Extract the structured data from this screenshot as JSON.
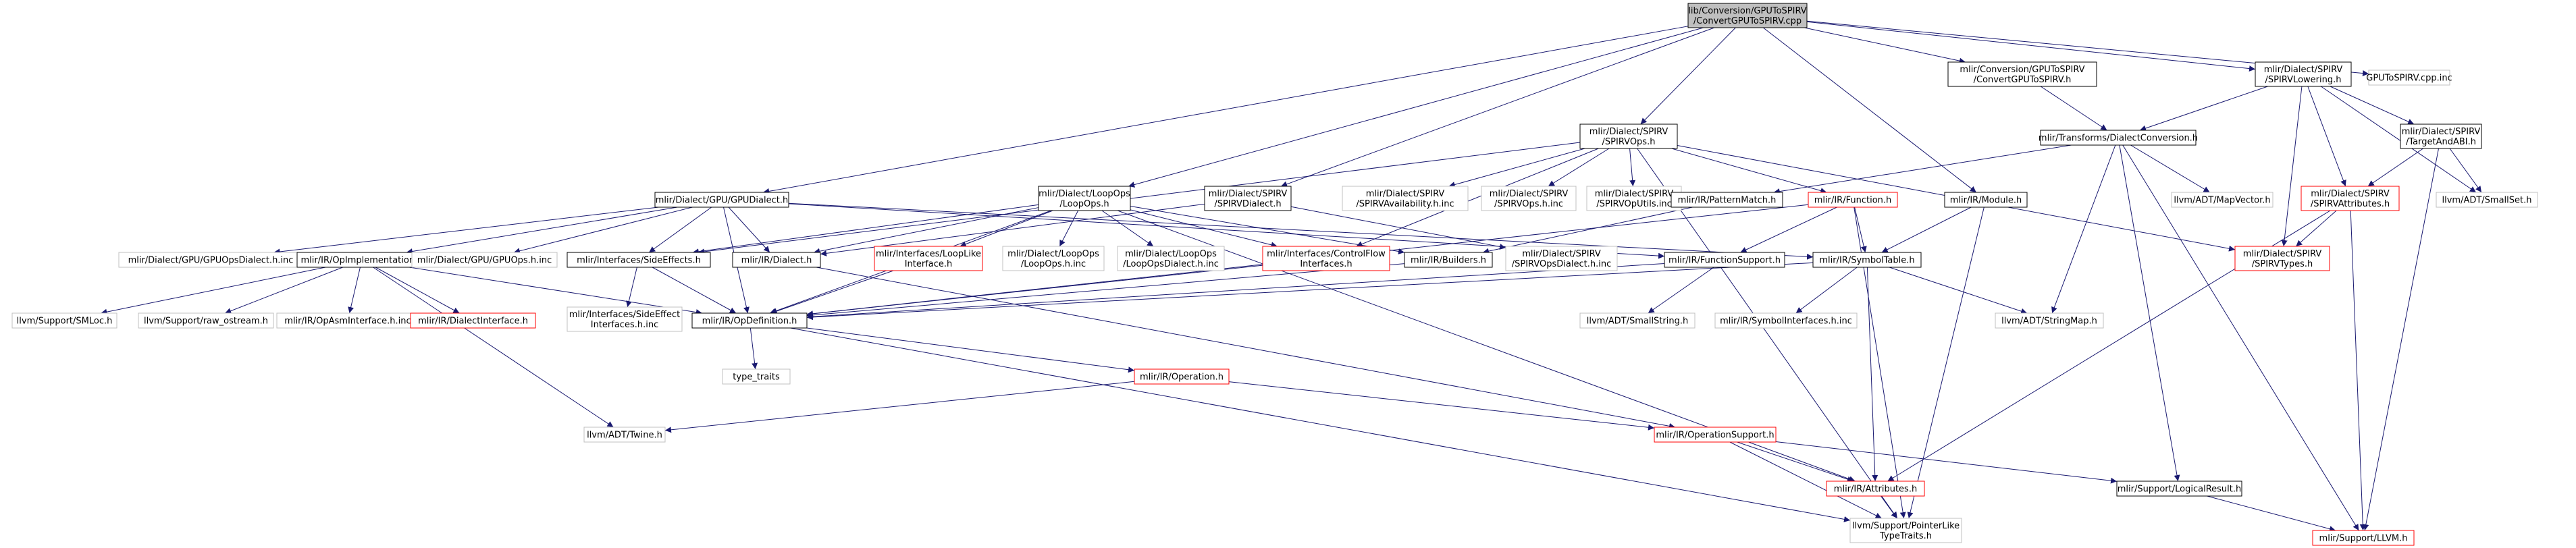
{
  "colors": {
    "edge": "#191970",
    "normal_border": "#000000",
    "missing_border": "#c0c0c0",
    "highlight_border": "#ff0000",
    "root_fill": "#bfbfbf",
    "node_fill": "#ffffff",
    "text": "#000000"
  },
  "nodes": [
    {
      "id": "root",
      "label": [
        "lib/Conversion/GPUToSPIRV",
        "/ConvertGPUToSPIRV.cpp"
      ],
      "kind": "root"
    },
    {
      "id": "spirvops",
      "label": [
        "mlir/Dialect/SPIRV",
        "/SPIRVOps.h"
      ],
      "kind": "normal"
    },
    {
      "id": "convh",
      "label": [
        "mlir/Conversion/GPUToSPIRV",
        "/ConvertGPUToSPIRV.h"
      ],
      "kind": "normal"
    },
    {
      "id": "spirvlowering",
      "label": [
        "mlir/Dialect/SPIRV",
        "/SPIRVLowering.h"
      ],
      "kind": "normal"
    },
    {
      "id": "gputospirvinc",
      "label": [
        "GPUToSPIRV.cpp.inc"
      ],
      "kind": "missing"
    },
    {
      "id": "dialectconv",
      "label": [
        "mlir/Transforms/DialectConversion.h"
      ],
      "kind": "normal"
    },
    {
      "id": "targetandabi",
      "label": [
        "mlir/Dialect/SPIRV",
        "/TargetAndABI.h"
      ],
      "kind": "normal"
    },
    {
      "id": "gpudialect",
      "label": [
        "mlir/Dialect/GPU/GPUDialect.h"
      ],
      "kind": "normal"
    },
    {
      "id": "loopops",
      "label": [
        "mlir/Dialect/LoopOps",
        "/LoopOps.h"
      ],
      "kind": "normal"
    },
    {
      "id": "spirvdialect",
      "label": [
        "mlir/Dialect/SPIRV",
        "/SPIRVDialect.h"
      ],
      "kind": "normal"
    },
    {
      "id": "spirvavail",
      "label": [
        "mlir/Dialect/SPIRV",
        "/SPIRVAvailability.h.inc"
      ],
      "kind": "missing"
    },
    {
      "id": "spirvopsinc",
      "label": [
        "mlir/Dialect/SPIRV",
        "/SPIRVOps.h.inc"
      ],
      "kind": "missing"
    },
    {
      "id": "spirvoputils",
      "label": [
        "mlir/Dialect/SPIRV",
        "/SPIRVOpUtils.inc"
      ],
      "kind": "missing"
    },
    {
      "id": "patternmatch",
      "label": [
        "mlir/IR/PatternMatch.h"
      ],
      "kind": "normal"
    },
    {
      "id": "function",
      "label": [
        "mlir/IR/Function.h"
      ],
      "kind": "highlight"
    },
    {
      "id": "module",
      "label": [
        "mlir/IR/Module.h"
      ],
      "kind": "normal"
    },
    {
      "id": "mapvector",
      "label": [
        "llvm/ADT/MapVector.h"
      ],
      "kind": "missing"
    },
    {
      "id": "spirvattrs",
      "label": [
        "mlir/Dialect/SPIRV",
        "/SPIRVAttributes.h"
      ],
      "kind": "highlight"
    },
    {
      "id": "smallset",
      "label": [
        "llvm/ADT/SmallSet.h"
      ],
      "kind": "missing"
    },
    {
      "id": "gpuopsdialectinc",
      "label": [
        "mlir/Dialect/GPU/GPUOpsDialect.h.inc"
      ],
      "kind": "missing"
    },
    {
      "id": "opimpl",
      "label": [
        "mlir/IR/OpImplementation.h"
      ],
      "kind": "normal"
    },
    {
      "id": "gpuopsinc",
      "label": [
        "mlir/Dialect/GPU/GPUOps.h.inc"
      ],
      "kind": "missing"
    },
    {
      "id": "sideeffects",
      "label": [
        "mlir/Interfaces/SideEffects.h"
      ],
      "kind": "normal"
    },
    {
      "id": "dialecth",
      "label": [
        "mlir/IR/Dialect.h"
      ],
      "kind": "normal"
    },
    {
      "id": "looplike",
      "label": [
        "mlir/Interfaces/LoopLike",
        "Interface.h"
      ],
      "kind": "highlight"
    },
    {
      "id": "loopopsinc",
      "label": [
        "mlir/Dialect/LoopOps",
        "/LoopOps.h.inc"
      ],
      "kind": "missing"
    },
    {
      "id": "loopopsdialectinc",
      "label": [
        "mlir/Dialect/LoopOps",
        "/LoopOpsDialect.h.inc"
      ],
      "kind": "missing"
    },
    {
      "id": "controlflow",
      "label": [
        "mlir/Interfaces/ControlFlow",
        "Interfaces.h"
      ],
      "kind": "highlight"
    },
    {
      "id": "builders",
      "label": [
        "mlir/IR/Builders.h"
      ],
      "kind": "normal"
    },
    {
      "id": "spirvopsdialectinc",
      "label": [
        "mlir/Dialect/SPIRV",
        "/SPIRVOpsDialect.h.inc"
      ],
      "kind": "missing"
    },
    {
      "id": "functionsupport",
      "label": [
        "mlir/IR/FunctionSupport.h"
      ],
      "kind": "normal"
    },
    {
      "id": "symboltable",
      "label": [
        "mlir/IR/SymbolTable.h"
      ],
      "kind": "normal"
    },
    {
      "id": "spirvtypes",
      "label": [
        "mlir/Dialect/SPIRV",
        "/SPIRVTypes.h"
      ],
      "kind": "highlight"
    },
    {
      "id": "smloc",
      "label": [
        "llvm/Support/SMLoc.h"
      ],
      "kind": "missing"
    },
    {
      "id": "rawostream",
      "label": [
        "llvm/Support/raw_ostream.h"
      ],
      "kind": "missing"
    },
    {
      "id": "opasminterface",
      "label": [
        "mlir/IR/OpAsmInterface.h.inc"
      ],
      "kind": "missing"
    },
    {
      "id": "dialectinterface",
      "label": [
        "mlir/IR/DialectInterface.h"
      ],
      "kind": "highlight"
    },
    {
      "id": "sideeffectinc",
      "label": [
        "mlir/Interfaces/SideEffect",
        "Interfaces.h.inc"
      ],
      "kind": "missing"
    },
    {
      "id": "opdefinition",
      "label": [
        "mlir/IR/OpDefinition.h"
      ],
      "kind": "normal"
    },
    {
      "id": "smallstring",
      "label": [
        "llvm/ADT/SmallString.h"
      ],
      "kind": "missing"
    },
    {
      "id": "symbolinterfaces",
      "label": [
        "mlir/IR/SymbolInterfaces.h.inc"
      ],
      "kind": "missing"
    },
    {
      "id": "stringmap",
      "label": [
        "llvm/ADT/StringMap.h"
      ],
      "kind": "missing"
    },
    {
      "id": "typetraits",
      "label": [
        "type_traits"
      ],
      "kind": "missing"
    },
    {
      "id": "operation",
      "label": [
        "mlir/IR/Operation.h"
      ],
      "kind": "highlight"
    },
    {
      "id": "twine",
      "label": [
        "llvm/ADT/Twine.h"
      ],
      "kind": "missing"
    },
    {
      "id": "operationsupport",
      "label": [
        "mlir/IR/OperationSupport.h"
      ],
      "kind": "highlight"
    },
    {
      "id": "attributes",
      "label": [
        "mlir/IR/Attributes.h"
      ],
      "kind": "highlight"
    },
    {
      "id": "logicalresult",
      "label": [
        "mlir/Support/LogicalResult.h"
      ],
      "kind": "normal"
    },
    {
      "id": "pointerlike",
      "label": [
        "llvm/Support/PointerLike",
        "TypeTraits.h"
      ],
      "kind": "missing"
    },
    {
      "id": "llvmh",
      "label": [
        "mlir/Support/LLVM.h"
      ],
      "kind": "highlight"
    }
  ],
  "edges": [
    [
      "root",
      "spirvops"
    ],
    [
      "root",
      "convh"
    ],
    [
      "root",
      "spirvlowering"
    ],
    [
      "root",
      "gputospirvinc"
    ],
    [
      "root",
      "gpudialect"
    ],
    [
      "root",
      "loopops"
    ],
    [
      "root",
      "spirvdialect"
    ],
    [
      "root",
      "module"
    ],
    [
      "convh",
      "dialectconv"
    ],
    [
      "spirvlowering",
      "dialectconv"
    ],
    [
      "spirvlowering",
      "targetandabi"
    ],
    [
      "spirvlowering",
      "spirvattrs"
    ],
    [
      "spirvlowering",
      "spirvtypes"
    ],
    [
      "spirvlowering",
      "smallset"
    ],
    [
      "targetandabi",
      "spirvattrs"
    ],
    [
      "targetandabi",
      "smallset"
    ],
    [
      "targetandabi",
      "llvmh"
    ],
    [
      "spirvattrs",
      "spirvtypes"
    ],
    [
      "spirvattrs",
      "attributes"
    ],
    [
      "spirvattrs",
      "llvmh"
    ],
    [
      "dialectconv",
      "patternmatch"
    ],
    [
      "dialectconv",
      "mapvector"
    ],
    [
      "dialectconv",
      "stringmap"
    ],
    [
      "dialectconv",
      "logicalresult"
    ],
    [
      "dialectconv",
      "llvmh"
    ],
    [
      "spirvops",
      "spirvavail"
    ],
    [
      "spirvops",
      "spirvopsinc"
    ],
    [
      "spirvops",
      "spirvoputils"
    ],
    [
      "spirvops",
      "function"
    ],
    [
      "spirvops",
      "controlflow"
    ],
    [
      "spirvops",
      "sideeffects"
    ],
    [
      "spirvops",
      "spirvtypes"
    ],
    [
      "spirvops",
      "pointerlike"
    ],
    [
      "gpudialect",
      "gpuopsdialectinc"
    ],
    [
      "gpudialect",
      "opimpl"
    ],
    [
      "gpudialect",
      "gpuopsinc"
    ],
    [
      "gpudialect",
      "sideeffects"
    ],
    [
      "gpudialect",
      "dialecth"
    ],
    [
      "gpudialect",
      "functionsupport"
    ],
    [
      "gpudialect",
      "symboltable"
    ],
    [
      "gpudialect",
      "opdefinition"
    ],
    [
      "loopops",
      "dialecth"
    ],
    [
      "loopops",
      "looplike"
    ],
    [
      "loopops",
      "loopopsinc"
    ],
    [
      "loopops",
      "loopopsdialectinc"
    ],
    [
      "loopops",
      "controlflow"
    ],
    [
      "loopops",
      "builders"
    ],
    [
      "loopops",
      "sideeffects"
    ],
    [
      "loopops",
      "opdefinition"
    ],
    [
      "loopops",
      "attributes"
    ],
    [
      "spirvdialect",
      "dialecth"
    ],
    [
      "spirvdialect",
      "spirvopsdialectinc"
    ],
    [
      "patternmatch",
      "builders"
    ],
    [
      "function",
      "functionsupport"
    ],
    [
      "function",
      "symboltable"
    ],
    [
      "function",
      "opdefinition"
    ],
    [
      "function",
      "pointerlike"
    ],
    [
      "module",
      "symboltable"
    ],
    [
      "module",
      "pointerlike"
    ],
    [
      "opimpl",
      "smloc"
    ],
    [
      "opimpl",
      "rawostream"
    ],
    [
      "opimpl",
      "opasminterface"
    ],
    [
      "opimpl",
      "dialectinterface"
    ],
    [
      "opimpl",
      "opdefinition"
    ],
    [
      "opimpl",
      "twine"
    ],
    [
      "sideeffects",
      "sideeffectinc"
    ],
    [
      "sideeffects",
      "opdefinition"
    ],
    [
      "dialecth",
      "operationsupport"
    ],
    [
      "looplike",
      "opdefinition"
    ],
    [
      "controlflow",
      "opdefinition"
    ],
    [
      "builders",
      "opdefinition"
    ],
    [
      "functionsupport",
      "opdefinition"
    ],
    [
      "functionsupport",
      "smallstring"
    ],
    [
      "symboltable",
      "opdefinition"
    ],
    [
      "symboltable",
      "symbolinterfaces"
    ],
    [
      "symboltable",
      "stringmap"
    ],
    [
      "symboltable",
      "attributes"
    ],
    [
      "opdefinition",
      "typetraits"
    ],
    [
      "opdefinition",
      "operation"
    ],
    [
      "opdefinition",
      "pointerlike"
    ],
    [
      "operation",
      "twine"
    ],
    [
      "operation",
      "operationsupport"
    ],
    [
      "operationsupport",
      "attributes"
    ],
    [
      "operationsupport",
      "logicalresult"
    ],
    [
      "operationsupport",
      "pointerlike"
    ],
    [
      "attributes",
      "pointerlike"
    ],
    [
      "logicalresult",
      "llvmh"
    ]
  ]
}
